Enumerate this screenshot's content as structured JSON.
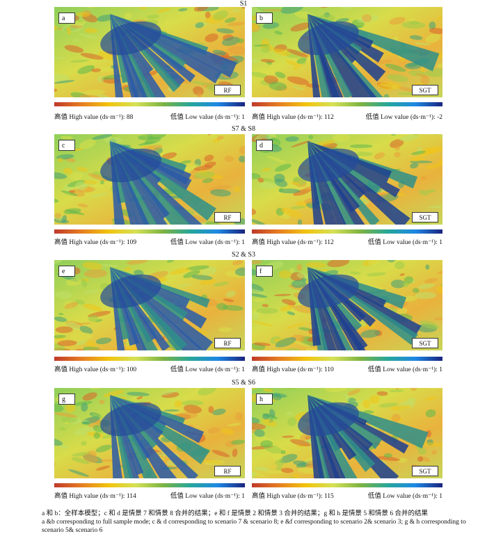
{
  "sections": [
    {
      "title": "S1",
      "panels": [
        {
          "letter": "a",
          "model": "RF",
          "high": 88,
          "low": 1
        },
        {
          "letter": "b",
          "model": "SGT",
          "high": 112,
          "low": -2
        }
      ]
    },
    {
      "title": "S7 & S8",
      "panels": [
        {
          "letter": "c",
          "model": "RF",
          "high": 109,
          "low": 1
        },
        {
          "letter": "d",
          "model": "SGT",
          "high": 112,
          "low": 1
        }
      ]
    },
    {
      "title": "S2 & S3",
      "panels": [
        {
          "letter": "e",
          "model": "RF",
          "high": 100,
          "low": 1
        },
        {
          "letter": "f",
          "model": "SGT",
          "high": 110,
          "low": 1
        }
      ]
    },
    {
      "title": "S5 & S6",
      "panels": [
        {
          "letter": "g",
          "model": "RF",
          "high": 114,
          "low": 1
        },
        {
          "letter": "h",
          "model": "SGT",
          "high": 115,
          "low": 1
        }
      ]
    }
  ],
  "legend": {
    "high_label": "高值 High value (ds·m⁻¹):",
    "low_label": "低值 Low value (ds·m⁻¹):"
  },
  "caption": {
    "zh": "a 和 b：全样本模型；c 和 d 是情景 7 和情景 8 合并的结果；e 和 f 是情景 2 和情景 3 合并的结果；g 和 h 是情景 5 和情景 6 合并的结果",
    "en": "a &b corresponding to full sample mode; c & d corresponding to scenario 7 & scenario 8; e &f corresponding to scenario 2& scenario 3; g & h corresponding to scenario 5& scenario 6"
  }
}
